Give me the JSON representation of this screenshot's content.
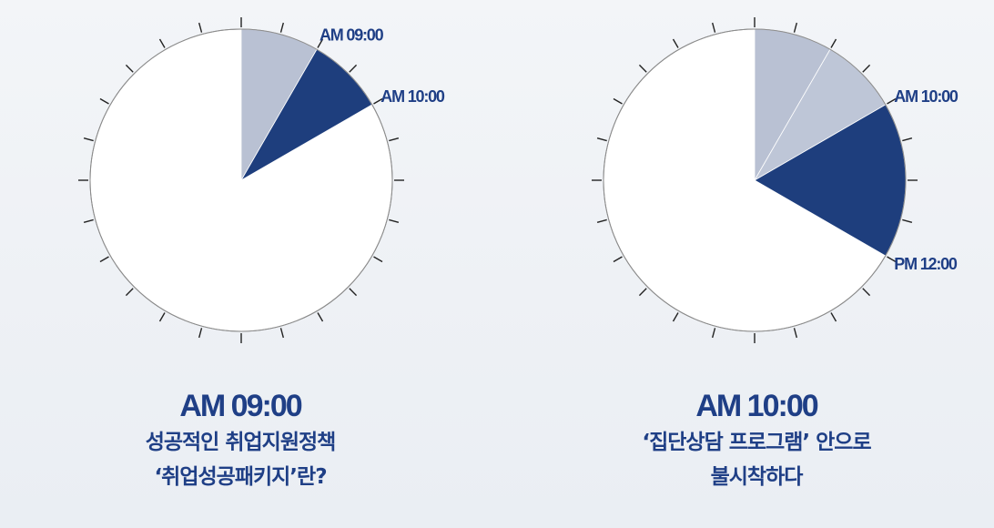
{
  "panels": [
    {
      "time_title": "AM 09:00",
      "caption": [
        "성공적인 취업지원정책",
        "‘취업성공패키지’란?"
      ],
      "clock": {
        "sectors": [
          {
            "from_hour": 0,
            "to_hour": 1,
            "color": "#b9c1d3"
          },
          {
            "from_hour": 1,
            "to_hour": 2,
            "color": "#1e3e7d"
          }
        ],
        "markers": [
          {
            "label": "AM 09:00",
            "at_hour": 1
          },
          {
            "label": "AM 10:00",
            "at_hour": 2
          }
        ]
      }
    },
    {
      "time_title": "AM 10:00",
      "caption": [
        "‘집단상담 프로그램’ 안으로",
        "불시착하다"
      ],
      "clock": {
        "sectors": [
          {
            "from_hour": 0,
            "to_hour": 1,
            "color": "#b9c1d3"
          },
          {
            "from_hour": 1,
            "to_hour": 2,
            "color": "#bec6d7"
          },
          {
            "from_hour": 2,
            "to_hour": 4,
            "color": "#1e3e7d"
          }
        ],
        "markers": [
          {
            "label": "AM 10:00",
            "at_hour": 2
          },
          {
            "label": "PM 12:00",
            "at_hour": 4
          }
        ]
      }
    }
  ],
  "colors": {
    "accent": "#1f3f86",
    "clock_face": "#ffffff",
    "clock_rim": "#8c8c8c",
    "tick": "#222222"
  }
}
